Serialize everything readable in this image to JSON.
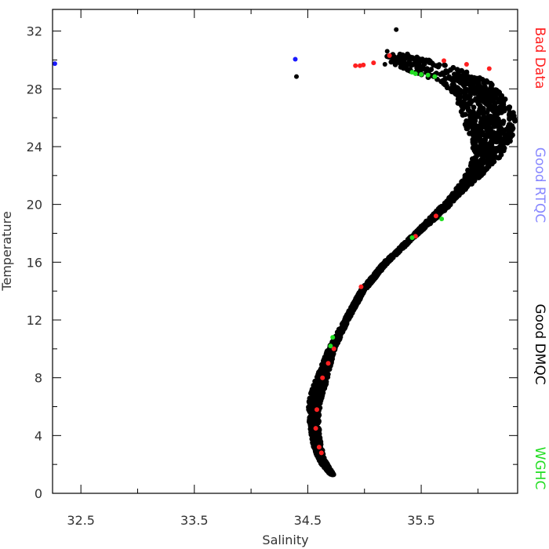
{
  "chart_data": {
    "type": "scatter",
    "xlabel": "Salinity",
    "ylabel": "Temperature",
    "xlim": [
      32.25,
      36.35
    ],
    "ylim": [
      0,
      33.5
    ],
    "xticks": [
      32.5,
      33.5,
      34.5,
      35.5
    ],
    "xticklabels": [
      "32.5",
      "33.5",
      "34.5",
      "35.5"
    ],
    "yticks": [
      0,
      4,
      8,
      12,
      16,
      20,
      24,
      28,
      32
    ],
    "yticklabels": [
      "0",
      "4",
      "8",
      "12",
      "16",
      "20",
      "24",
      "28",
      "32"
    ],
    "grid": false,
    "legend_position": "right-vertical",
    "series": [
      {
        "name": "Bad Data",
        "color": "#ff2020",
        "points": [
          [
            34.92,
            29.6
          ],
          [
            34.96,
            29.6
          ],
          [
            34.99,
            29.65
          ],
          [
            35.08,
            29.8
          ],
          [
            35.22,
            30.3
          ],
          [
            35.7,
            29.95
          ],
          [
            35.9,
            29.7
          ],
          [
            36.1,
            29.4
          ],
          [
            35.63,
            19.2
          ],
          [
            35.45,
            17.8
          ],
          [
            34.97,
            14.3
          ],
          [
            34.73,
            10.0
          ],
          [
            34.68,
            9.0
          ],
          [
            34.63,
            8.0
          ],
          [
            34.58,
            5.8
          ],
          [
            34.57,
            4.5
          ],
          [
            34.62,
            2.8
          ],
          [
            34.6,
            3.2
          ]
        ]
      },
      {
        "name": "Good RTQC",
        "color": "#1a1aff",
        "points": [
          [
            32.27,
            29.75
          ],
          [
            34.39,
            30.05
          ]
        ]
      },
      {
        "name": "Good DMQC",
        "color": "#000000",
        "points": [
          [
            34.4,
            28.85
          ],
          [
            35.28,
            32.1
          ],
          [
            35.2,
            30.6
          ],
          [
            35.18,
            29.7
          ],
          [
            35.35,
            29.5
          ],
          [
            35.5,
            29.3
          ]
        ]
      },
      {
        "name": "WGHC",
        "color": "#22dd22",
        "points": [
          [
            35.42,
            29.15
          ],
          [
            35.45,
            29.05
          ],
          [
            35.5,
            29.0
          ],
          [
            35.56,
            28.95
          ],
          [
            35.62,
            28.85
          ],
          [
            35.68,
            19.0
          ],
          [
            35.42,
            17.7
          ],
          [
            34.72,
            10.8
          ],
          [
            34.7,
            10.2
          ]
        ]
      }
    ]
  }
}
